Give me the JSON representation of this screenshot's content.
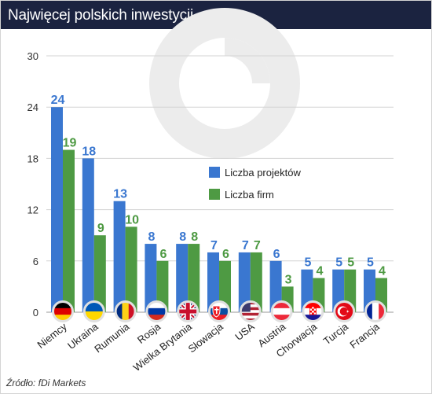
{
  "title": "Najwięcej polskich inwestycji",
  "source": "Źródło: fDi Markets",
  "colors": {
    "projects": "#3a77d0",
    "firms": "#4e9a43",
    "title_bg": "#1b2340"
  },
  "chart_data": {
    "type": "bar",
    "title": "Najwięcej polskich inwestycji",
    "xlabel": "",
    "ylabel": "",
    "ylim": [
      0,
      30
    ],
    "yticks": [
      0,
      6,
      12,
      18,
      24,
      30
    ],
    "grid": true,
    "legend_position": "center-right",
    "categories": [
      "Niemcy",
      "Ukraina",
      "Rumunia",
      "Rosja",
      "Wielka Brytania",
      "Słowacja",
      "USA",
      "Austria",
      "Chorwacja",
      "Turcja",
      "Francja"
    ],
    "flag_icons": [
      "germany-flag-icon",
      "ukraine-flag-icon",
      "romania-flag-icon",
      "russia-flag-icon",
      "uk-flag-icon",
      "slovakia-flag-icon",
      "usa-flag-icon",
      "austria-flag-icon",
      "croatia-flag-icon",
      "turkey-flag-icon",
      "france-flag-icon"
    ],
    "series": [
      {
        "name": "Liczba projektów",
        "values": [
          24,
          18,
          13,
          8,
          8,
          7,
          7,
          6,
          5,
          5,
          5
        ]
      },
      {
        "name": "Liczba firm",
        "values": [
          19,
          9,
          10,
          6,
          8,
          6,
          7,
          3,
          4,
          5,
          4
        ]
      }
    ]
  }
}
